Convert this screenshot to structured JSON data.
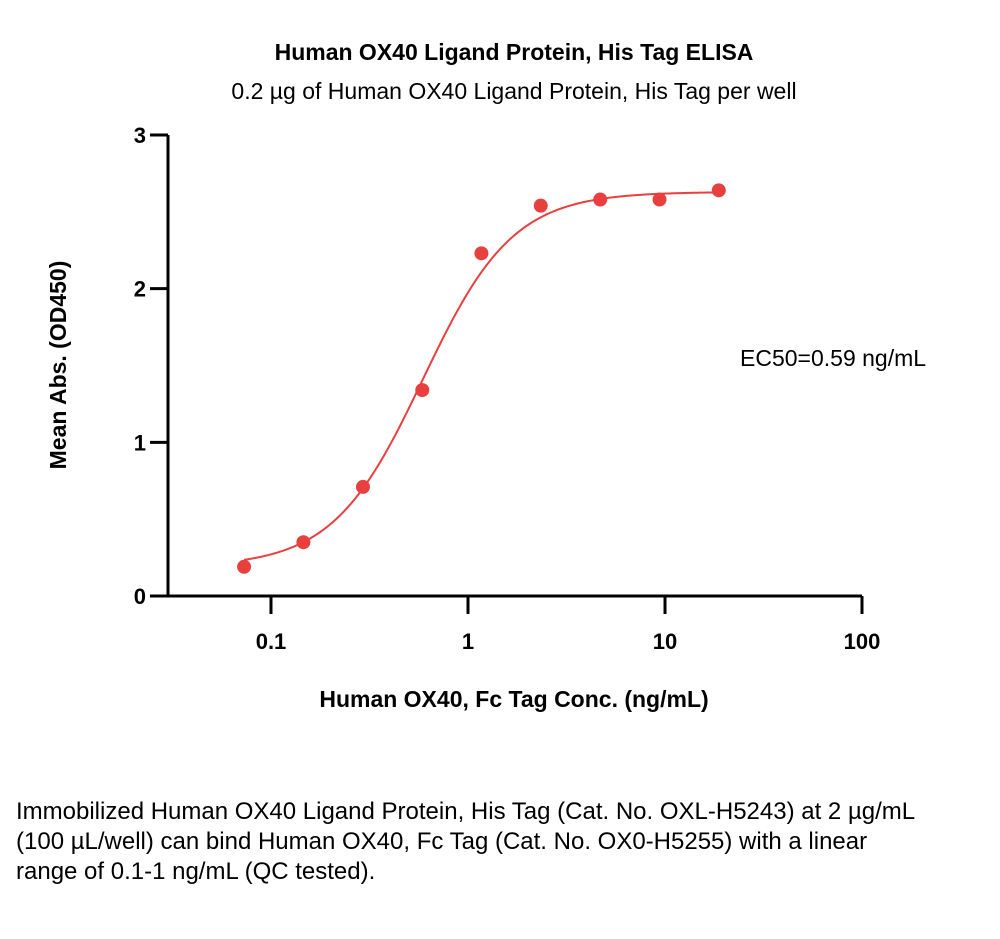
{
  "chart_data": {
    "type": "scatter",
    "title": "Human OX40 Ligand Protein, His Tag ELISA",
    "subtitle": "0.2 µg of Human OX40 Ligand Protein, His Tag per well",
    "xlabel": "Human OX40, Fc Tag Conc. (ng/mL)",
    "ylabel": "Mean Abs. (OD450)",
    "x_scale": "log",
    "xlim": [
      0.03,
      100
    ],
    "ylim": [
      0,
      3
    ],
    "x_ticks": [
      0.1,
      1,
      10,
      100
    ],
    "x_tick_labels": [
      "0.1",
      "1",
      "10",
      "100"
    ],
    "y_ticks": [
      0,
      1,
      2,
      3
    ],
    "y_tick_labels": [
      "0",
      "1",
      "2",
      "3"
    ],
    "grid": false,
    "color": "#e8403f",
    "x": [
      0.073,
      0.146,
      0.293,
      0.586,
      1.17,
      2.34,
      4.69,
      9.38,
      18.75
    ],
    "y": [
      0.19,
      0.35,
      0.71,
      1.34,
      2.23,
      2.54,
      2.58,
      2.58,
      2.64
    ],
    "fit_curve": "4PL",
    "annotation": "EC50=0.59 ng/mL"
  },
  "caption": "Immobilized Human OX40 Ligand Protein, His Tag (Cat. No. OXL-H5243) at 2 µg/mL (100 µL/well) can bind Human OX40, Fc Tag (Cat. No. OX0-H5255) with a linear range of 0.1-1 ng/mL (QC tested)."
}
